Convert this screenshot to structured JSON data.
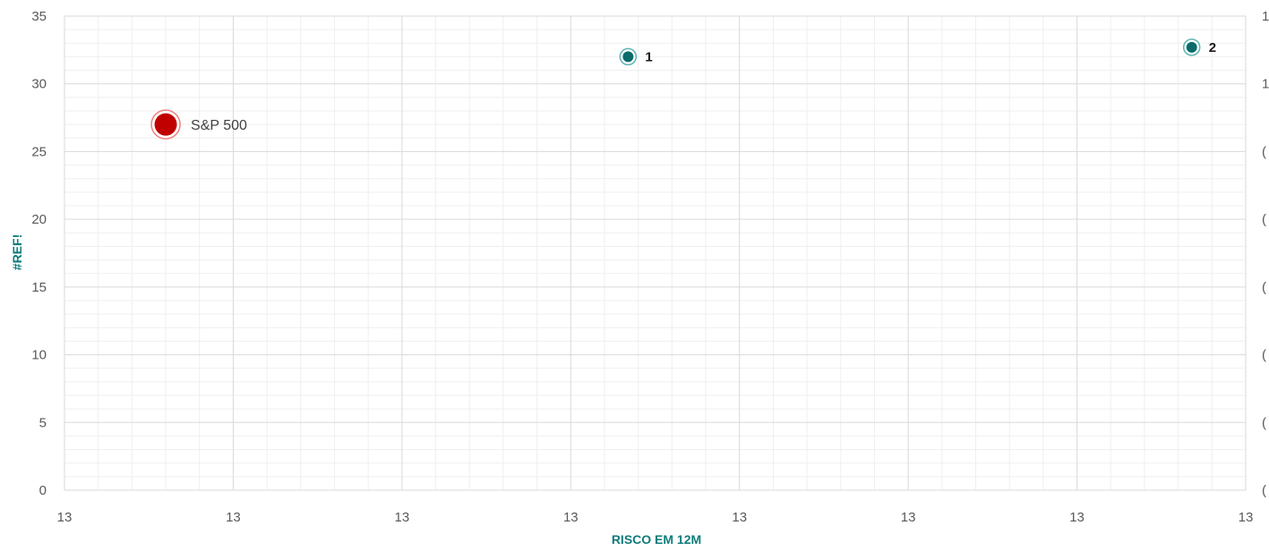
{
  "chart_data": {
    "type": "scatter",
    "xlabel": "RISCO EM 12M",
    "ylabel": "#REF!",
    "xlim": [
      0,
      7
    ],
    "ylim": [
      0,
      35
    ],
    "x_tick_labels": [
      "13",
      "13",
      "13",
      "13",
      "13",
      "13",
      "13",
      "13"
    ],
    "y_ticks": [
      0,
      5,
      10,
      15,
      20,
      25,
      30,
      35
    ],
    "y_tick_labels": [
      "0",
      "5",
      "10",
      "15",
      "20",
      "25",
      "30",
      "35"
    ],
    "secondary_y_tick_labels": [
      "1",
      "1",
      "(",
      "(",
      "(",
      "(",
      "(",
      "("
    ],
    "grid": true,
    "points": [
      {
        "label": "S&P 500",
        "x": 0.6,
        "y": 27,
        "kind": "benchmark",
        "color": "#c00000"
      },
      {
        "label": "1",
        "x": 3.34,
        "y": 32,
        "kind": "fund",
        "color": "#0b6b6b"
      },
      {
        "label": "2",
        "x": 6.68,
        "y": 32.7,
        "kind": "fund",
        "color": "#0b6b6b"
      }
    ],
    "colors": {
      "benchmark": "#c00000",
      "fund": "#0b6b6b",
      "axis_title": "#0e7c7b"
    }
  }
}
